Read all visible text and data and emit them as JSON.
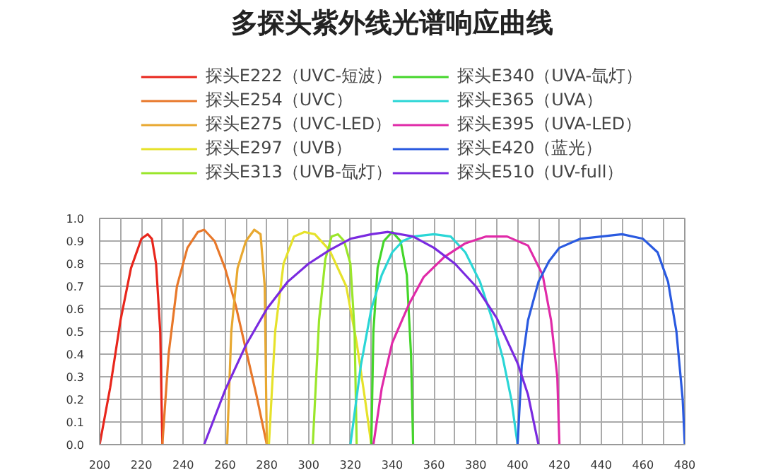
{
  "chart_data": {
    "type": "line",
    "title": "多探头紫外线光谱响应曲线",
    "legend": "top",
    "grid": true,
    "line_style": "solid",
    "marker": "none",
    "xlim": [
      200,
      480
    ],
    "ylim": [
      0,
      1.0
    ],
    "xticks": [
      200,
      {
        "value": 210,
        "label": null
      },
      220,
      {
        "value": 230,
        "label": null
      },
      240,
      {
        "value": 250,
        "label": null
      },
      260,
      {
        "value": 270,
        "label": null
      },
      280,
      {
        "value": 290,
        "label": null
      },
      300,
      {
        "value": 310,
        "label": null
      },
      320,
      {
        "value": 330,
        "label": null
      },
      340,
      {
        "value": 350,
        "label": null
      },
      360,
      {
        "value": 370,
        "label": null
      },
      380,
      {
        "value": 390,
        "label": null
      },
      400,
      {
        "value": 410,
        "label": null
      },
      420,
      {
        "value": 430,
        "label": null
      },
      440,
      {
        "value": 450,
        "label": null
      },
      460,
      {
        "value": 470,
        "label": null
      },
      480
    ],
    "yticks": [
      {
        "value": 0,
        "label": "0.0"
      },
      0.1,
      0.2,
      0.3,
      0.4,
      0.5,
      0.6,
      0.7,
      0.8,
      0.9,
      {
        "value": 1,
        "label": "1.0"
      }
    ],
    "series": [
      {
        "name": "探头E222（UVC-短波）",
        "color": "#e8261c",
        "x": [
          200,
          205,
          210,
          215,
          220,
          223,
          225,
          227,
          229,
          230
        ],
        "values": [
          0,
          0.25,
          0.55,
          0.78,
          0.91,
          0.93,
          0.91,
          0.8,
          0.5,
          0
        ]
      },
      {
        "name": "探头E254（UVC）",
        "color": "#e8782a",
        "x": [
          230,
          233,
          237,
          242,
          247,
          250,
          255,
          260,
          265,
          270,
          275,
          280
        ],
        "values": [
          0,
          0.4,
          0.7,
          0.87,
          0.94,
          0.95,
          0.9,
          0.78,
          0.62,
          0.42,
          0.22,
          0
        ]
      },
      {
        "name": "探头E275（UVC-LED）",
        "color": "#e8a830",
        "x": [
          261,
          263,
          266,
          270,
          274,
          277,
          279,
          280
        ],
        "values": [
          0,
          0.5,
          0.78,
          0.9,
          0.95,
          0.93,
          0.7,
          0
        ]
      },
      {
        "name": "探头E297（UVB）",
        "color": "#e6e22a",
        "x": [
          281,
          284,
          288,
          293,
          298,
          303,
          310,
          318,
          323,
          327,
          330
        ],
        "values": [
          0,
          0.5,
          0.8,
          0.92,
          0.94,
          0.93,
          0.86,
          0.7,
          0.45,
          0.2,
          0
        ]
      },
      {
        "name": "探头E313（UVB-氙灯）",
        "color": "#9ae62a",
        "x": [
          302,
          305,
          308,
          311,
          314,
          317,
          320,
          322,
          323
        ],
        "values": [
          0,
          0.55,
          0.82,
          0.92,
          0.93,
          0.9,
          0.8,
          0.5,
          0
        ]
      },
      {
        "name": "探头E340（UVA-氙灯）",
        "color": "#44d62a",
        "x": [
          330,
          331,
          333,
          336,
          340,
          344,
          347,
          349,
          350
        ],
        "values": [
          0,
          0.5,
          0.78,
          0.9,
          0.94,
          0.9,
          0.75,
          0.4,
          0
        ]
      },
      {
        "name": "探头E365（UVA）",
        "color": "#2ad6d6",
        "x": [
          320,
          325,
          330,
          335,
          340,
          345,
          350,
          360,
          368,
          375,
          382,
          388,
          393,
          397,
          400
        ],
        "values": [
          0,
          0.35,
          0.6,
          0.75,
          0.85,
          0.9,
          0.92,
          0.93,
          0.92,
          0.85,
          0.72,
          0.55,
          0.38,
          0.2,
          0
        ]
      },
      {
        "name": "探头E395（UVA-LED）",
        "color": "#e02aa8",
        "x": [
          331,
          335,
          340,
          348,
          355,
          365,
          375,
          385,
          395,
          405,
          412,
          416,
          419,
          420
        ],
        "values": [
          0,
          0.25,
          0.45,
          0.62,
          0.74,
          0.83,
          0.89,
          0.92,
          0.92,
          0.88,
          0.75,
          0.55,
          0.3,
          0
        ]
      },
      {
        "name": "探头E420（蓝光）",
        "color": "#2a5ae0",
        "x": [
          400,
          402,
          405,
          410,
          415,
          420,
          430,
          440,
          450,
          460,
          467,
          472,
          476,
          479,
          480
        ],
        "values": [
          0,
          0.35,
          0.55,
          0.72,
          0.81,
          0.87,
          0.91,
          0.92,
          0.93,
          0.91,
          0.85,
          0.72,
          0.5,
          0.2,
          0
        ]
      },
      {
        "name": "探头E510（UV-full）",
        "color": "#7a2ae0",
        "x": [
          250,
          260,
          270,
          280,
          290,
          300,
          310,
          320,
          330,
          338,
          350,
          360,
          370,
          380,
          390,
          400,
          405,
          410
        ],
        "values": [
          0,
          0.24,
          0.44,
          0.6,
          0.72,
          0.8,
          0.86,
          0.91,
          0.93,
          0.94,
          0.92,
          0.87,
          0.8,
          0.7,
          0.56,
          0.36,
          0.22,
          0
        ]
      }
    ]
  }
}
